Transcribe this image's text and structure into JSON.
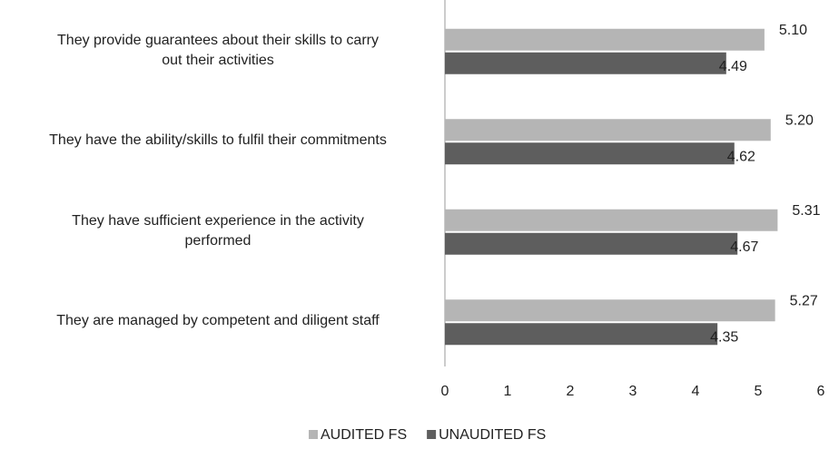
{
  "chart_data": {
    "type": "hbar",
    "categories": [
      "They provide guarantees about their skills to carry\nout their activities",
      "They have the ability/skills to fulfil their commitments",
      "They have sufficient experience in the activity\nperformed",
      "They are managed by competent and diligent staff"
    ],
    "series": [
      {
        "name": "AUDITED FS",
        "color": "#b5b5b5",
        "values": [
          5.1,
          5.2,
          5.31,
          5.27
        ],
        "value_labels": [
          "5.10",
          "5.20",
          "5.31",
          "5.27"
        ]
      },
      {
        "name": "UNAUDITED FS",
        "color": "#5e5e5e",
        "values": [
          4.49,
          4.62,
          4.67,
          4.35
        ],
        "value_labels": [
          "4.49",
          "4.62",
          "4.67",
          "4.35"
        ]
      }
    ],
    "xlim": [
      0,
      6
    ],
    "xticks": [
      0,
      1,
      2,
      3,
      4,
      5,
      6
    ],
    "legend": "bottom"
  }
}
